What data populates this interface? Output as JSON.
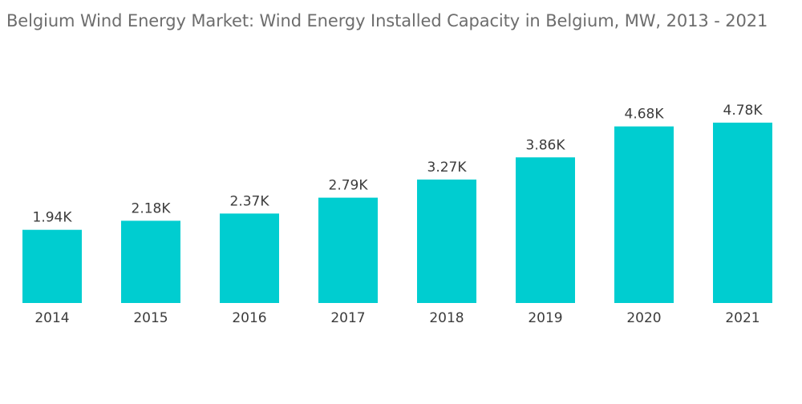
{
  "title": "Belgium Wind Energy Market: Wind Energy Installed Capacity in Belgium, MW, 2013 - 2021",
  "colors": {
    "bar": "#00CDD0",
    "title": "#6D6D6D",
    "text": "#3C3C3C"
  },
  "chart_data": {
    "type": "bar",
    "title": "Belgium Wind Energy Market: Wind Energy Installed Capacity in Belgium, MW, 2013 - 2021",
    "xlabel": "",
    "ylabel": "",
    "categories": [
      "2014",
      "2015",
      "2016",
      "2017",
      "2018",
      "2019",
      "2020",
      "2021"
    ],
    "values": [
      1940,
      2180,
      2370,
      2790,
      3270,
      3860,
      4680,
      4780
    ],
    "value_labels": [
      "1.94K",
      "2.18K",
      "2.37K",
      "2.79K",
      "3.27K",
      "3.86K",
      "4.68K",
      "4.78K"
    ],
    "ylim": [
      0,
      5000
    ],
    "grid": false,
    "legend": "none"
  }
}
